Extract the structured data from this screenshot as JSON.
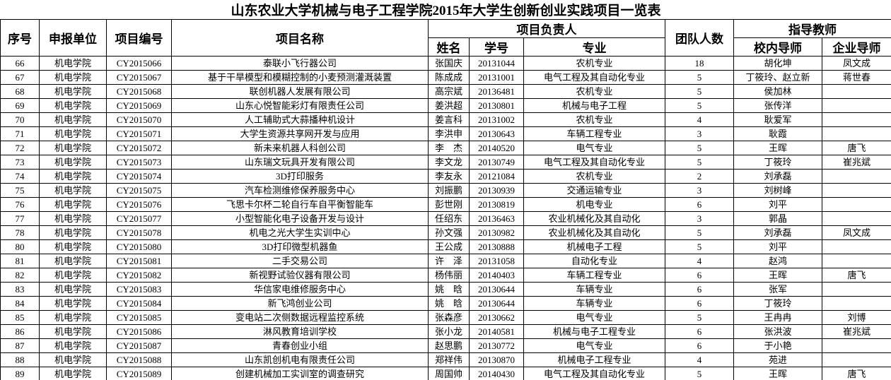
{
  "title": "山东农业大学机械与电子工程学院2015年大学生创新创业实践项目一览表",
  "header": {
    "seq": "序号",
    "unit": "申报单位",
    "code": "项目编号",
    "name": "项目名称",
    "leader": "项目负责人",
    "leader_name": "姓名",
    "student_id": "学号",
    "major": "专业",
    "team_size": "团队人数",
    "advisor": "指导教师",
    "internal": "校内导师",
    "enterprise": "企业导师"
  },
  "table": {
    "rows": [
      [
        "66",
        "机电学院",
        "CY2015066",
        "泰联小飞行器公司",
        "张国庆",
        "20131044",
        "农机专业",
        "18",
        "胡化坤",
        "凤文成"
      ],
      [
        "67",
        "机电学院",
        "CY2015067",
        "基于干旱模型和模糊控制的小麦预测灌溉装置",
        "陈成成",
        "20131001",
        "电气工程及其自动化专业",
        "5",
        "丁筱玲、赵立新",
        "蒋世春"
      ],
      [
        "68",
        "机电学院",
        "CY2015068",
        "联创机器人发展有限公司",
        "高宗斌",
        "20136481",
        "农机专业",
        "5",
        "侯加林",
        null
      ],
      [
        "69",
        "机电学院",
        "CY2015069",
        "山东心悦智能彩灯有限责任公司",
        "姜洪超",
        "20130801",
        "机械与电子工程",
        "5",
        "张传洋",
        null
      ],
      [
        "70",
        "机电学院",
        "CY2015070",
        "人工辅助式大蒜播种机设计",
        "姜言科",
        "20131002",
        "农机专业",
        "4",
        "耿爱军",
        null
      ],
      [
        "71",
        "机电学院",
        "CY2015071",
        "大学生资源共享网开发与应用",
        "李洪申",
        "20130643",
        "车辆工程专业",
        "3",
        "耿霞",
        null
      ],
      [
        "72",
        "机电学院",
        "CY2015072",
        "新未来机器人科创公司",
        "李　杰",
        "20140520",
        "电气专业",
        "5",
        "王晖",
        "唐飞"
      ],
      [
        "73",
        "机电学院",
        "CY2015073",
        "山东瑞文玩具开发有限公司",
        "李文龙",
        "20130749",
        "电气工程及其自动化专业",
        "5",
        "丁筱玲",
        "崔兆斌"
      ],
      [
        "74",
        "机电学院",
        "CY2015074",
        "3D打印服务",
        "李友永",
        "20121084",
        "农机专业",
        "2",
        "刘承磊",
        null
      ],
      [
        "75",
        "机电学院",
        "CY2015075",
        "汽车检测维修保养服务中心",
        "刘振鹏",
        "20130939",
        "交通运输专业",
        "3",
        "刘树峰",
        null
      ],
      [
        "76",
        "机电学院",
        "CY2015076",
        "飞思卡尔杯二轮自行车自平衡智能车",
        "彭世刚",
        "20130819",
        "机电专业",
        "6",
        "刘平",
        null
      ],
      [
        "77",
        "机电学院",
        "CY2015077",
        "小型智能化电子设备开发与设计",
        "任绍东",
        "20136463",
        "农业机械化及其自动化",
        "3",
        "郭晶",
        null
      ],
      [
        "78",
        "机电学院",
        "CY2015078",
        "机电之光大学生实训中心",
        "孙文强",
        "20130982",
        "农业机械化及其自动化",
        "5",
        "刘承磊",
        "凤文成"
      ],
      [
        "80",
        "机电学院",
        "CY2015080",
        "3D打印微型机器鱼",
        "王公成",
        "20130888",
        "机械电子工程",
        "5",
        "刘平",
        null
      ],
      [
        "81",
        "机电学院",
        "CY2015081",
        "二手交易公司",
        "许　泽",
        "20131058",
        "自动化专业",
        "4",
        "赵鸿",
        null
      ],
      [
        "82",
        "机电学院",
        "CY2015082",
        "新视野试验仪器有限公司",
        "杨伟丽",
        "20140403",
        "车辆工程专业",
        "6",
        "王晖",
        "唐飞"
      ],
      [
        "83",
        "机电学院",
        "CY2015083",
        "华信家电维修服务中心",
        "姚　晗",
        "20130644",
        "车辆专业",
        "6",
        "张军",
        null
      ],
      [
        "84",
        "机电学院",
        "CY2015084",
        "新飞鸿创业公司",
        "姚　晗",
        "20130644",
        "车辆专业",
        "6",
        "丁筱玲",
        null
      ],
      [
        "85",
        "机电学院",
        "CY2015085",
        "变电站二次侧数据远程监控系统",
        "张森彦",
        "20130662",
        "电气专业",
        "5",
        "王冉冉",
        "刘博"
      ],
      [
        "86",
        "机电学院",
        "CY2015086",
        "淋风教育培训学校",
        "张小龙",
        "20140581",
        "机械与电子工程专业",
        "6",
        "张洪波",
        "崔兆斌"
      ],
      [
        "87",
        "机电学院",
        "CY2015087",
        "青春创业小组",
        "赵思鹏",
        "20130772",
        "电气专业",
        "6",
        "于小艳",
        null
      ],
      [
        "88",
        "机电学院",
        "CY2015088",
        "山东凯创机电有限责任公司",
        "郑祥伟",
        "20130870",
        "机械电子工程专业",
        "4",
        "苑进",
        null
      ],
      [
        "89",
        "机电学院",
        "CY2015089",
        "创建机械加工实训室的调查研究",
        "周国帅",
        "20140430",
        "电气工程及其自动化专业",
        "5",
        "王晖",
        "唐飞"
      ]
    ]
  }
}
